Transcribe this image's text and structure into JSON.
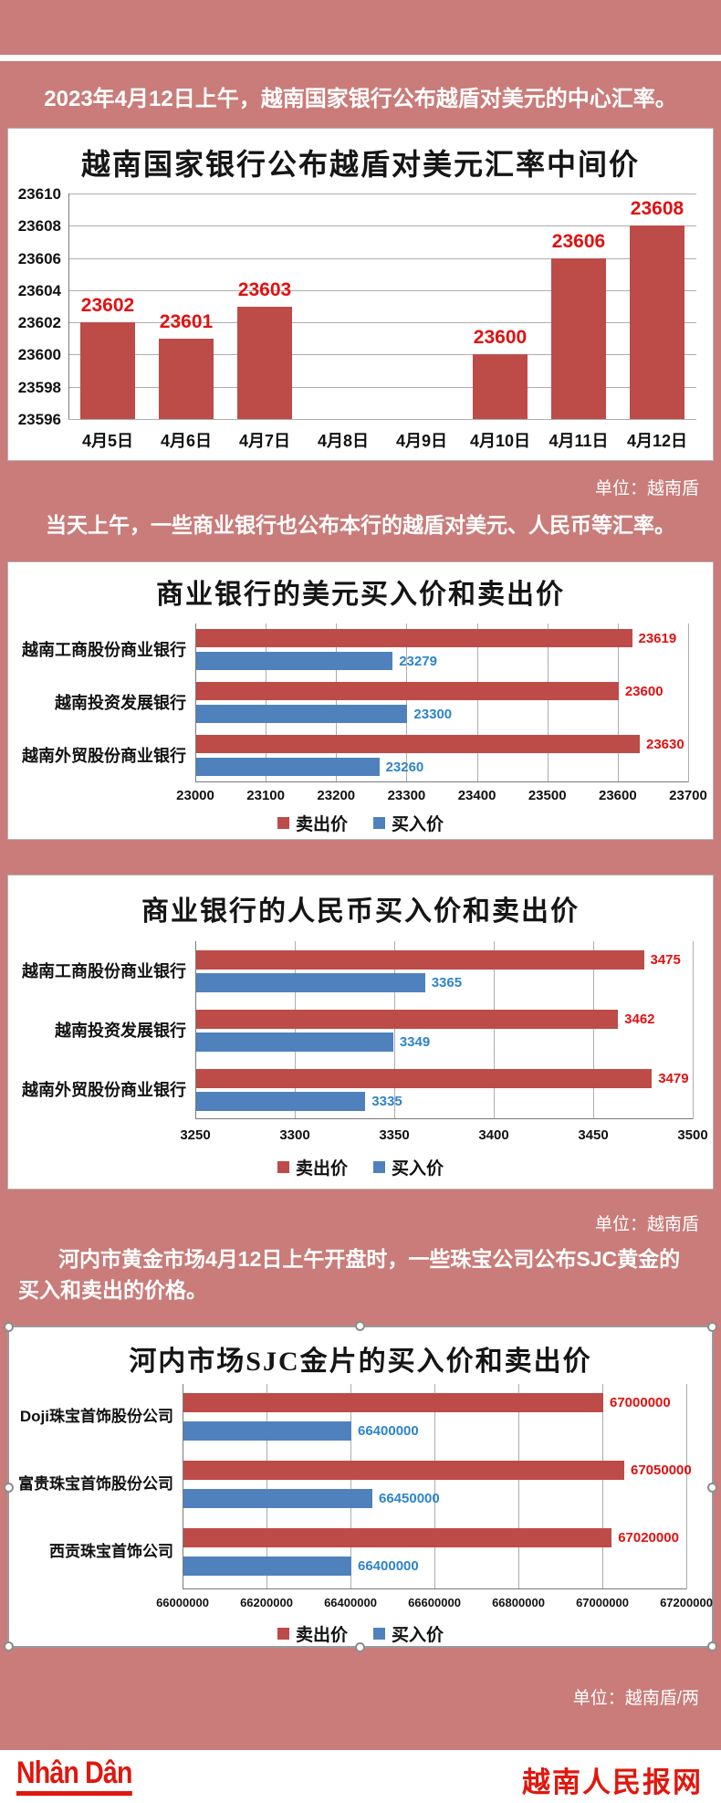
{
  "page": {
    "background_color": "#c97c79",
    "intro_1": "2023年4月12日上午，越南国家银行公布越盾对美元的中心汇率。",
    "unit_1": "单位：越南盾",
    "intro_2": "当天上午，一些商业银行也公布本行的越盾对美元、人民币等汇率。",
    "unit_2": "单位：越南盾",
    "intro_3_lines": [
      "河内市黄金市场4月12日上午开盘时，一些珠宝公司公布SJC黄金的",
      "买入和卖出的价格。"
    ],
    "unit_3": "单位：越南盾/两",
    "footer": {
      "logo_text": "Nhân Dân",
      "site_name": "越南人民报网",
      "brand_color": "#e0170e"
    }
  },
  "colors": {
    "sell_bar": "#bd4b48",
    "buy_bar": "#4f81bd",
    "sell_label": "#e01110",
    "buy_label": "#2e84c9",
    "grid_line": "#adadad",
    "panel_bg": "#ffffff"
  },
  "chart_data": [
    {
      "type": "bar",
      "title": "越南国家银行公布越盾对美元汇率中间价",
      "categories": [
        "4月5日",
        "4月6日",
        "4月7日",
        "4月8日",
        "4月9日",
        "4月10日",
        "4月11日",
        "4月12日"
      ],
      "values": [
        23602,
        23601,
        23603,
        null,
        null,
        23600,
        23606,
        23608
      ],
      "ylim": [
        23596,
        23610
      ],
      "yticks": [
        23610,
        23608,
        23606,
        23604,
        23602,
        23600,
        23598,
        23596
      ],
      "grid": true,
      "unit": "越南盾",
      "bar_color_key": "sell_bar",
      "label_color_key": "sell_label"
    },
    {
      "type": "bar-horizontal",
      "title": "商业银行的美元买入价和卖出价",
      "categories": [
        "越南工商股份商业银行",
        "越南投资发展银行",
        "越南外贸股份商业银行"
      ],
      "series": [
        {
          "name": "卖出价",
          "color_key": "sell_bar",
          "label_color_key": "sell_label",
          "values": [
            23619,
            23600,
            23630
          ]
        },
        {
          "name": "买入价",
          "color_key": "buy_bar",
          "label_color_key": "buy_label",
          "values": [
            23279,
            23300,
            23260
          ]
        }
      ],
      "xlim": [
        23000,
        23700
      ],
      "xticks": [
        23000,
        23100,
        23200,
        23300,
        23400,
        23500,
        23600,
        23700
      ],
      "grid": true,
      "legend_position": "bottom",
      "unit": "越南盾"
    },
    {
      "type": "bar-horizontal",
      "title": "商业银行的人民币买入价和卖出价",
      "categories": [
        "越南工商股份商业银行",
        "越南投资发展银行",
        "越南外贸股份商业银行"
      ],
      "series": [
        {
          "name": "卖出价",
          "color_key": "sell_bar",
          "label_color_key": "sell_label",
          "values": [
            3475,
            3462,
            3479
          ]
        },
        {
          "name": "买入价",
          "color_key": "buy_bar",
          "label_color_key": "buy_label",
          "values": [
            3365,
            3349,
            3335
          ]
        }
      ],
      "xlim": [
        3250,
        3500
      ],
      "xticks": [
        3250,
        3300,
        3350,
        3400,
        3450,
        3500
      ],
      "grid": true,
      "legend_position": "bottom",
      "unit": "越南盾"
    },
    {
      "type": "bar-horizontal",
      "title": "河内市场SJC金片的买入价和卖出价",
      "categories": [
        "Doji珠宝首饰股份公司",
        "富贵珠宝首饰股份公司",
        "西贡珠宝首饰公司"
      ],
      "series": [
        {
          "name": "卖出价",
          "color_key": "sell_bar",
          "label_color_key": "sell_label",
          "values": [
            67000000,
            67050000,
            67020000
          ]
        },
        {
          "name": "买入价",
          "color_key": "buy_bar",
          "label_color_key": "buy_label",
          "values": [
            66400000,
            66450000,
            66400000
          ]
        }
      ],
      "xlim": [
        66000000,
        67200000
      ],
      "xticks": [
        66000000,
        66200000,
        66400000,
        66600000,
        66800000,
        67000000,
        67200000
      ],
      "grid": true,
      "legend_position": "bottom",
      "unit": "越南盾/两"
    }
  ]
}
